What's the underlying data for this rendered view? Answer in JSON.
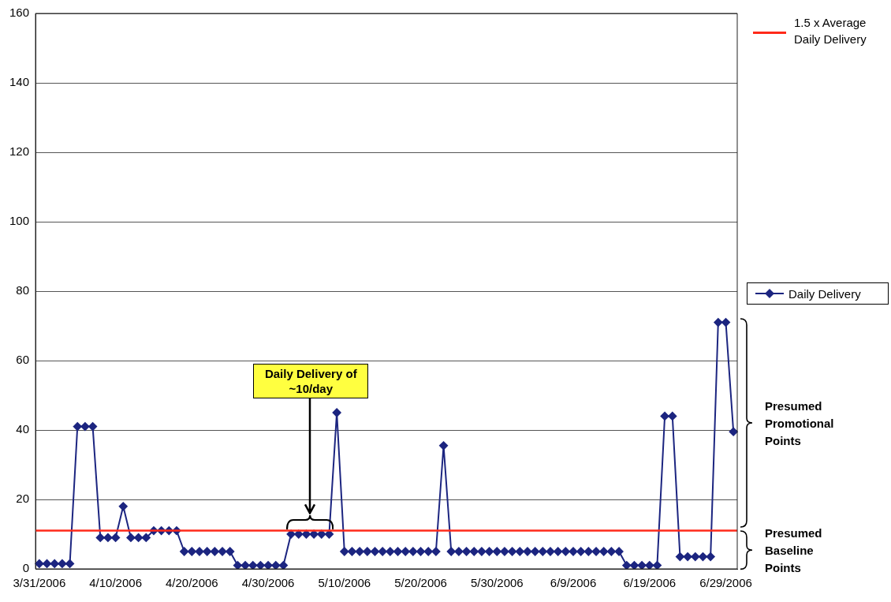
{
  "chart_data": {
    "type": "line",
    "categories": [
      "3/31/2006",
      null,
      null,
      null,
      null,
      null,
      null,
      null,
      null,
      null,
      "4/10/2006",
      null,
      null,
      null,
      null,
      null,
      null,
      null,
      null,
      null,
      "4/20/2006",
      null,
      null,
      null,
      null,
      null,
      null,
      null,
      null,
      null,
      "4/30/2006",
      null,
      null,
      null,
      null,
      null,
      null,
      null,
      null,
      null,
      "5/10/2006",
      null,
      null,
      null,
      null,
      null,
      null,
      null,
      null,
      null,
      "5/20/2006",
      null,
      null,
      null,
      null,
      null,
      null,
      null,
      null,
      null,
      "5/30/2006",
      null,
      null,
      null,
      null,
      null,
      null,
      null,
      null,
      null,
      "6/9/2006",
      null,
      null,
      null,
      null,
      null,
      null,
      null,
      null,
      null,
      "6/19/2006",
      null,
      null,
      null,
      null,
      null,
      null,
      null,
      null,
      null,
      "6/29/2006",
      null
    ],
    "series": [
      {
        "name": "Daily Delivery",
        "color": "#1c2580",
        "values": [
          1.5,
          1.5,
          1.5,
          1.5,
          1.5,
          41,
          41,
          41,
          9,
          9,
          9,
          18,
          9,
          9,
          9,
          11,
          11,
          11,
          11,
          5,
          5,
          5,
          5,
          5,
          5,
          5,
          1,
          1,
          1,
          1,
          1,
          1,
          1,
          10,
          10,
          10,
          10,
          10,
          10,
          45,
          5,
          5,
          5,
          5,
          5,
          5,
          5,
          5,
          5,
          5,
          5,
          5,
          5,
          35.5,
          5,
          5,
          5,
          5,
          5,
          5,
          5,
          5,
          5,
          5,
          5,
          5,
          5,
          5,
          5,
          5,
          5,
          5,
          5,
          5,
          5,
          5,
          5,
          1,
          1,
          1,
          1,
          1,
          44,
          44,
          3.5,
          3.5,
          3.5,
          3.5,
          3.5,
          71,
          71,
          39.5
        ]
      }
    ],
    "ylim": [
      0,
      160
    ],
    "yticks": [
      0,
      20,
      40,
      60,
      80,
      100,
      120,
      140,
      160
    ],
    "grid": "y",
    "legend": "right",
    "marker": "diamond",
    "line_style": "solid",
    "ref_lines": [
      {
        "axis": "y",
        "value": 11,
        "label": "1.5 x Average Daily Delivery",
        "color": "#ff2a1a"
      }
    ],
    "annotations": [
      "Daily Delivery of ~10/day",
      "Presumed Promotional Points",
      "Presumed Baseline Points"
    ]
  }
}
